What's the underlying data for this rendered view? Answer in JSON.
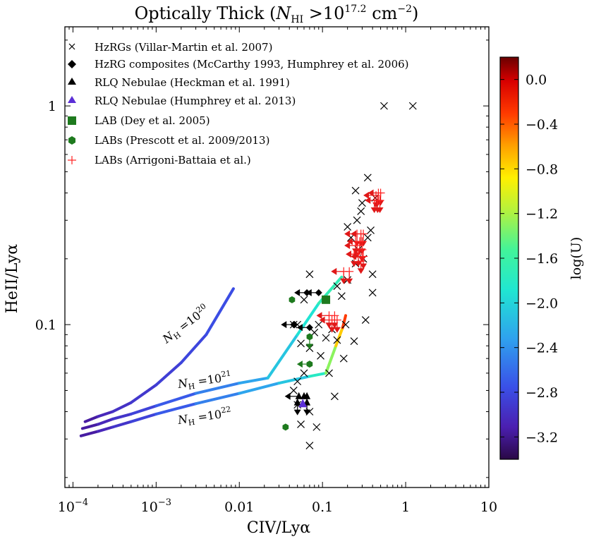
{
  "chart_data": {
    "type": "scatter",
    "title": "Optically Thick (NHI >10^17.2 cm^-2)",
    "title_parts": {
      "prefix": "Optically Thick (",
      "n": "N",
      "n_sub": "HI",
      "gt": " >10",
      "exp": "17.2",
      "unit": " cm",
      "unit_exp": "−2",
      "suffix": ")"
    },
    "xlabel": "CIV/Lyα",
    "ylabel": "HeII/Lyα",
    "xscale": "log",
    "yscale": "log",
    "xlim": [
      8e-05,
      10
    ],
    "ylim": [
      0.018,
      2.3
    ],
    "x_ticks": [
      {
        "value": 0.0001,
        "base": "10",
        "exp": "−4"
      },
      {
        "value": 0.001,
        "base": "10",
        "exp": "−3"
      },
      {
        "value": 0.01,
        "label": "0.01"
      },
      {
        "value": 0.1,
        "label": "0.1"
      },
      {
        "value": 1,
        "label": "1"
      },
      {
        "value": 10,
        "label": "10"
      }
    ],
    "y_ticks": [
      {
        "value": 0.1,
        "label": "0.1"
      },
      {
        "value": 1,
        "label": "1"
      }
    ],
    "colorbar": {
      "label": "log(U)",
      "range": [
        -3.4,
        0.2
      ],
      "ticks": [
        "0.0",
        "−0.4",
        "−0.8",
        "−1.2",
        "−1.6",
        "−2.0",
        "−2.4",
        "−2.8",
        "−3.2"
      ],
      "tick_values": [
        0.0,
        -0.4,
        -0.8,
        -1.2,
        -1.6,
        -2.0,
        -2.4,
        -2.8,
        -3.2
      ]
    },
    "legend": [
      {
        "marker": "x",
        "color": "#000000",
        "label": "HzRGs (Villar-Martin et al. 2007)"
      },
      {
        "marker": "diamond",
        "color": "#000000",
        "label": "HzRG composites (McCarthy 1993, Humphrey et al. 2006)"
      },
      {
        "marker": "triangle",
        "color": "#000000",
        "label": "RLQ Nebulae (Heckman et al. 1991)"
      },
      {
        "marker": "triangle",
        "color": "#5b2fd6",
        "label": "RLQ Nebulae (Humphrey et al. 2013)"
      },
      {
        "marker": "square",
        "color": "#1e7a1e",
        "label": "LAB (Dey et al. 2005)"
      },
      {
        "marker": "hexagon",
        "color": "#1e7a1e",
        "label": "LABs (Prescott et al. 2009/2013)"
      },
      {
        "marker": "plus",
        "color": "#ff2020",
        "label": "LABs (Arrigoni-Battaia et al.)"
      }
    ],
    "model_curves": [
      {
        "name": "NH=10^20",
        "label": {
          "n": "N",
          "sub": "H",
          "eq": " =10",
          "exp": "20"
        },
        "points": [
          [
            0.00014,
            0.036
          ],
          [
            0.0002,
            0.038
          ],
          [
            0.0003,
            0.04
          ],
          [
            0.0005,
            0.044
          ],
          [
            0.001,
            0.053
          ],
          [
            0.002,
            0.067
          ],
          [
            0.004,
            0.09
          ],
          [
            0.0085,
            0.146
          ]
        ],
        "logU": [
          -3.2,
          -3.1,
          -3.0,
          -2.95,
          -2.9,
          -2.85,
          -2.8,
          -2.75
        ]
      },
      {
        "name": "NH=10^21",
        "label": {
          "n": "N",
          "sub": "H",
          "eq": " =10",
          "exp": "21"
        },
        "points": [
          [
            0.00013,
            0.0335
          ],
          [
            0.0002,
            0.035
          ],
          [
            0.0003,
            0.037
          ],
          [
            0.0005,
            0.039
          ],
          [
            0.001,
            0.0425
          ],
          [
            0.003,
            0.0485
          ],
          [
            0.01,
            0.054
          ],
          [
            0.022,
            0.057
          ],
          [
            0.05,
            0.09
          ],
          [
            0.09,
            0.125
          ],
          [
            0.17,
            0.165
          ]
        ],
        "logU": [
          -3.2,
          -3.1,
          -3.0,
          -2.9,
          -2.8,
          -2.6,
          -2.4,
          -2.2,
          -2.0,
          -1.8,
          -1.6
        ]
      },
      {
        "name": "NH=10^22",
        "label": {
          "n": "N",
          "sub": "H",
          "eq": " =10",
          "exp": "22"
        },
        "points": [
          [
            0.000125,
            0.031
          ],
          [
            0.0002,
            0.0325
          ],
          [
            0.0003,
            0.034
          ],
          [
            0.0005,
            0.036
          ],
          [
            0.001,
            0.039
          ],
          [
            0.003,
            0.0435
          ],
          [
            0.01,
            0.0485
          ],
          [
            0.03,
            0.054
          ],
          [
            0.07,
            0.058
          ],
          [
            0.11,
            0.06
          ],
          [
            0.145,
            0.08
          ],
          [
            0.175,
            0.097
          ],
          [
            0.19,
            0.11
          ]
        ],
        "logU": [
          -3.2,
          -3.1,
          -3.0,
          -2.9,
          -2.8,
          -2.6,
          -2.4,
          -2.2,
          -2.0,
          -1.6,
          -1.0,
          -0.5,
          -0.1
        ]
      }
    ],
    "hzrgs": [
      [
        0.55,
        1.0
      ],
      [
        1.22,
        1.0
      ],
      [
        0.35,
        0.47
      ],
      [
        0.25,
        0.41
      ],
      [
        0.43,
        0.38
      ],
      [
        0.3,
        0.36
      ],
      [
        0.29,
        0.33
      ],
      [
        0.26,
        0.3
      ],
      [
        0.2,
        0.28
      ],
      [
        0.22,
        0.25
      ],
      [
        0.38,
        0.27
      ],
      [
        0.35,
        0.25
      ],
      [
        0.27,
        0.22
      ],
      [
        0.31,
        0.2
      ],
      [
        0.25,
        0.19
      ],
      [
        0.4,
        0.17
      ],
      [
        0.07,
        0.17
      ],
      [
        0.2,
        0.16
      ],
      [
        0.15,
        0.15
      ],
      [
        0.4,
        0.14
      ],
      [
        0.17,
        0.135
      ],
      [
        0.06,
        0.13
      ],
      [
        0.33,
        0.105
      ],
      [
        0.19,
        0.1
      ],
      [
        0.05,
        0.1
      ],
      [
        0.09,
        0.1
      ],
      [
        0.13,
        0.095
      ],
      [
        0.045,
        0.1
      ],
      [
        0.08,
        0.092
      ],
      [
        0.11,
        0.087
      ],
      [
        0.15,
        0.085
      ],
      [
        0.24,
        0.084
      ],
      [
        0.055,
        0.082
      ],
      [
        0.07,
        0.078
      ],
      [
        0.095,
        0.072
      ],
      [
        0.18,
        0.07
      ],
      [
        0.06,
        0.06
      ],
      [
        0.12,
        0.06
      ],
      [
        0.05,
        0.055
      ],
      [
        0.045,
        0.05
      ],
      [
        0.14,
        0.047
      ],
      [
        0.05,
        0.043
      ],
      [
        0.07,
        0.04
      ],
      [
        0.055,
        0.035
      ],
      [
        0.085,
        0.034
      ],
      [
        0.07,
        0.028
      ]
    ],
    "hzrg_composites": [
      [
        0.07,
        0.097
      ],
      [
        0.045,
        0.1
      ],
      [
        0.065,
        0.14
      ],
      [
        0.09,
        0.14
      ]
    ],
    "rlq_heckman": [
      [
        0.052,
        0.047
      ],
      [
        0.06,
        0.047
      ],
      [
        0.065,
        0.047
      ],
      [
        0.05,
        0.044
      ],
      [
        0.065,
        0.044
      ]
    ],
    "rlq_humphrey": [
      [
        0.058,
        0.0435
      ]
    ],
    "lab_dey": [
      [
        0.11,
        0.13
      ]
    ],
    "labs_prescott": [
      [
        0.043,
        0.13
      ],
      [
        0.07,
        0.088
      ],
      [
        0.07,
        0.066
      ],
      [
        0.036,
        0.034
      ]
    ],
    "labs_arrigoni": [
      [
        0.44,
        0.39
      ],
      [
        0.47,
        0.4
      ],
      [
        0.5,
        0.4
      ],
      [
        0.42,
        0.37
      ],
      [
        0.46,
        0.37
      ],
      [
        0.49,
        0.37
      ],
      [
        0.26,
        0.26
      ],
      [
        0.29,
        0.26
      ],
      [
        0.31,
        0.26
      ],
      [
        0.25,
        0.24
      ],
      [
        0.28,
        0.24
      ],
      [
        0.3,
        0.24
      ],
      [
        0.26,
        0.23
      ],
      [
        0.3,
        0.22
      ],
      [
        0.27,
        0.21
      ],
      [
        0.24,
        0.21
      ],
      [
        0.31,
        0.205
      ],
      [
        0.29,
        0.195
      ],
      [
        0.18,
        0.175
      ],
      [
        0.21,
        0.175
      ],
      [
        0.12,
        0.11
      ],
      [
        0.14,
        0.11
      ],
      [
        0.13,
        0.105
      ],
      [
        0.15,
        0.105
      ]
    ]
  }
}
